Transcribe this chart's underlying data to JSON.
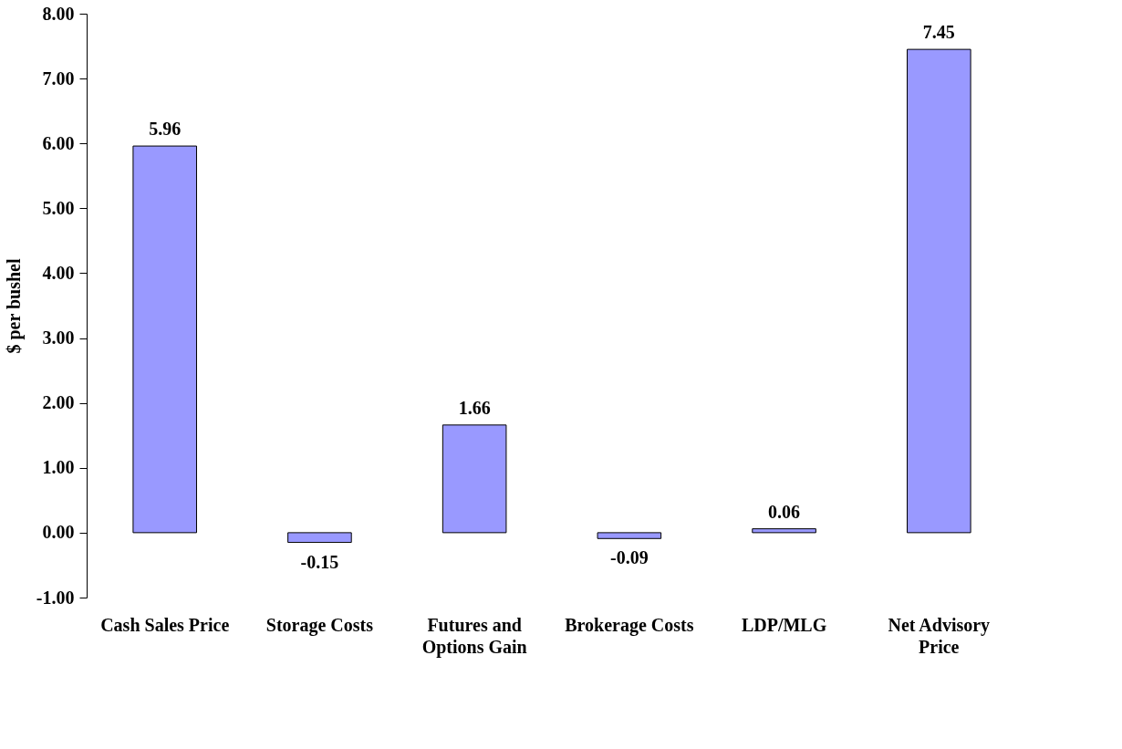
{
  "chart_data": {
    "type": "bar",
    "ylabel": "$ per bushel",
    "categories": [
      "Cash Sales Price",
      "Storage Costs",
      "Futures and Options Gain",
      "Brokerage Costs",
      "LDP/MLG",
      "Net Advisory Price"
    ],
    "values": [
      5.96,
      -0.15,
      1.66,
      -0.09,
      0.06,
      7.45
    ],
    "color": "#9999ff",
    "ylim": [
      -1,
      8
    ],
    "yticks": [
      {
        "value": -1,
        "label": "-1.00"
      },
      {
        "value": 0,
        "label": "0.00"
      },
      {
        "value": 1,
        "label": "1.00"
      },
      {
        "value": 2,
        "label": "2.00"
      },
      {
        "value": 3,
        "label": "3.00"
      },
      {
        "value": 4,
        "label": "4.00"
      },
      {
        "value": 5,
        "label": "5.00"
      },
      {
        "value": 6,
        "label": "6.00"
      },
      {
        "value": 7,
        "label": "7.00"
      },
      {
        "value": 8,
        "label": "8.00"
      }
    ],
    "data_labels": true
  }
}
